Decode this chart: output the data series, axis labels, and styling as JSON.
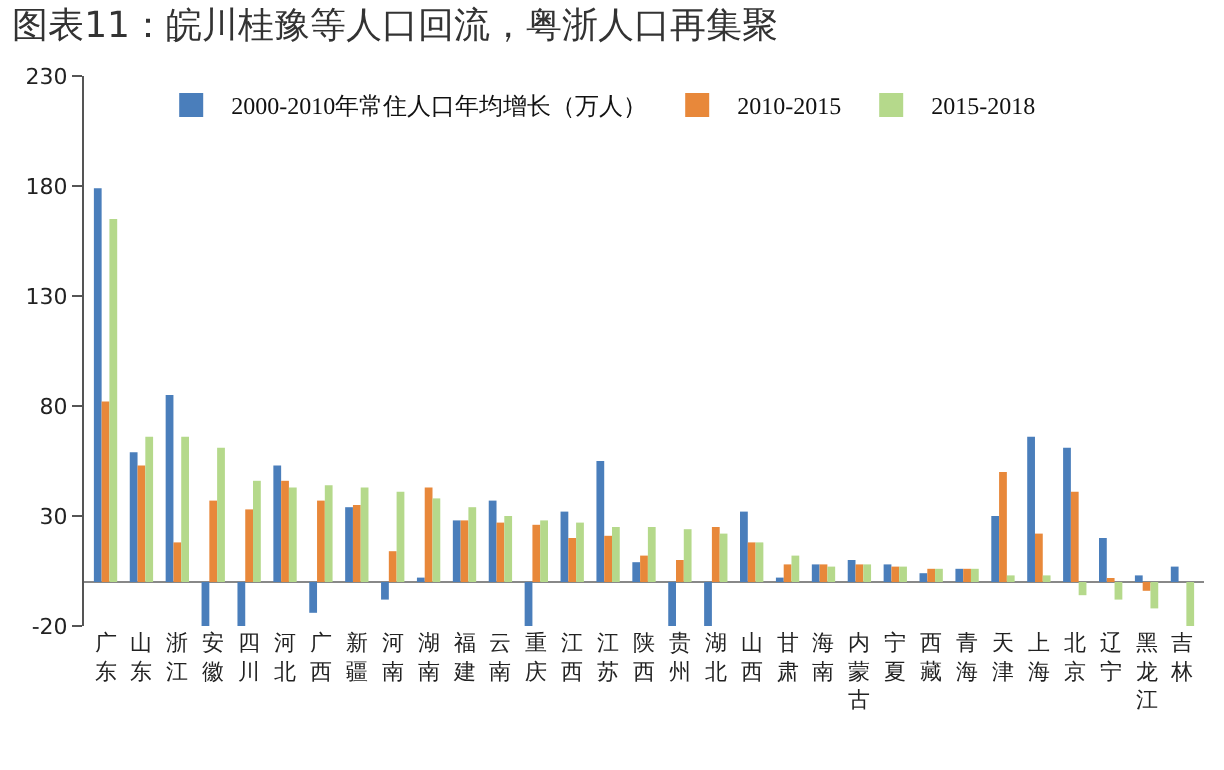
{
  "chart_data": {
    "type": "bar",
    "title": "图表11：皖川桂豫等人口回流，粤浙人口再集聚",
    "categories": [
      "广东",
      "山东",
      "浙江",
      "安徽",
      "四川",
      "河北",
      "广西",
      "新疆",
      "河南",
      "湖南",
      "福建",
      "云南",
      "重庆",
      "江西",
      "江苏",
      "陕西",
      "贵州",
      "湖北",
      "山西",
      "甘肃",
      "海南",
      "内蒙古",
      "宁夏",
      "西藏",
      "青海",
      "天津",
      "上海",
      "北京",
      "辽宁",
      "黑龙江",
      "吉林"
    ],
    "series": [
      {
        "name": "2000-2010年常住人口年均增长（万人）",
        "color": "#4a7ebb",
        "values": [
          179,
          59,
          85,
          -20,
          -20,
          53,
          -14,
          34,
          -8,
          2,
          28,
          37,
          -20,
          32,
          55,
          9,
          -20,
          -20,
          32,
          2,
          8,
          10,
          8,
          4,
          6,
          30,
          66,
          61,
          20,
          3,
          7
        ]
      },
      {
        "name": "2010-2015",
        "color": "#e8883a",
        "values": [
          82,
          53,
          18,
          37,
          33,
          46,
          37,
          35,
          14,
          43,
          28,
          27,
          26,
          20,
          21,
          12,
          10,
          25,
          18,
          8,
          8,
          8,
          7,
          6,
          6,
          50,
          22,
          41,
          1,
          -4,
          0
        ]
      },
      {
        "name": "2015-2018",
        "color": "#b5d98b",
        "values": [
          165,
          66,
          66,
          61,
          46,
          43,
          44,
          43,
          41,
          38,
          34,
          30,
          28,
          27,
          25,
          25,
          24,
          22,
          18,
          12,
          7,
          8,
          7,
          6,
          6,
          3,
          3,
          -6,
          -8,
          -12,
          -20
        ]
      }
    ],
    "ylim": [
      -20,
      230
    ],
    "yticks": [
      -20,
      30,
      80,
      130,
      180,
      230
    ],
    "legend": "top"
  }
}
